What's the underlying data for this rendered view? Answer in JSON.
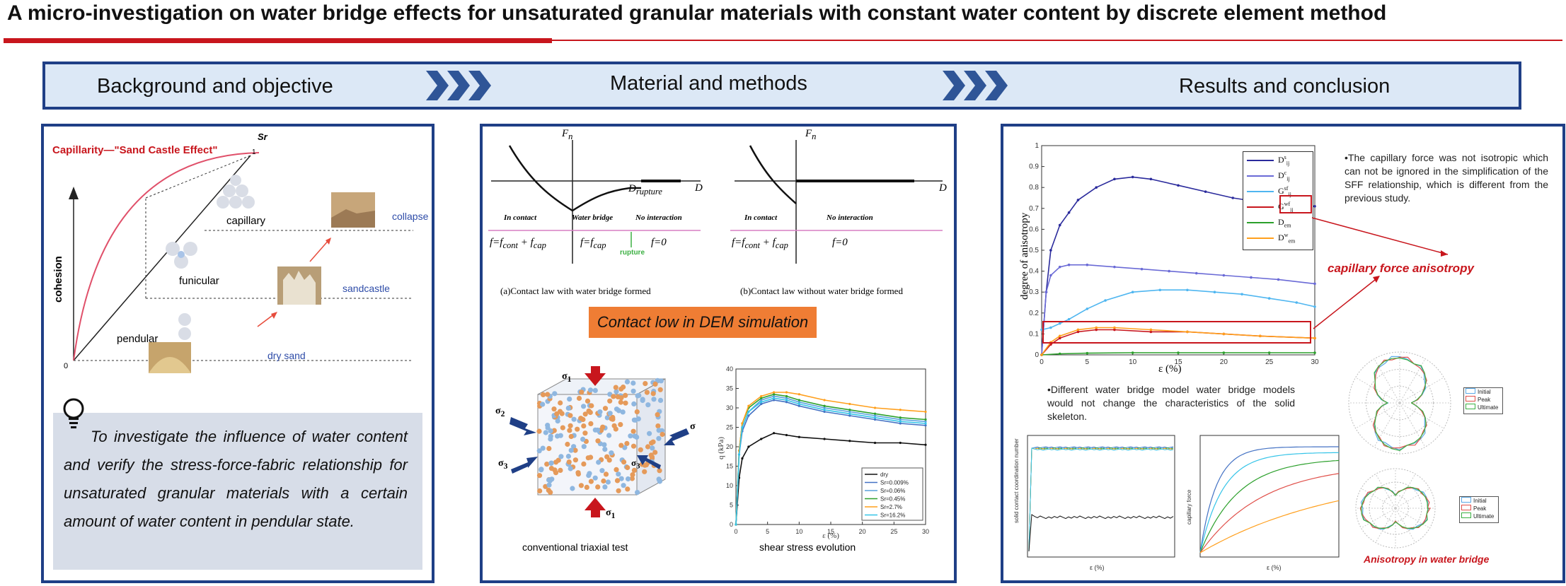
{
  "title": "A micro-investigation on water bridge effects for unsaturated granular materials with constant water content by discrete element method",
  "banner": {
    "background": "Background and objective",
    "methods": "Material and methods",
    "results": "Results and conclusion"
  },
  "colors": {
    "accent_red": "#c8161d",
    "frame_blue": "#1f3f86",
    "banner_fill": "#dce8f6",
    "orange": "#ef7d34"
  },
  "panel1": {
    "heading": "Capillarity—\"Sand Castle Effect\"",
    "axis_cohesion": "cohesion",
    "origin": "0",
    "sr_label": "Sr",
    "one_label": "1",
    "states": {
      "capillary": "capillary",
      "funicular": "funicular",
      "pendular": "pendular"
    },
    "photos": {
      "collapse": "collapse",
      "sandcastle": "sandcastle",
      "dry_sand": "dry sand"
    },
    "objective": "To investigate the  influence of water content and verify the stress-force-fabric relationship for unsaturated granular materials with a certain amount of water content  in pendular state."
  },
  "panel2": {
    "fn_label": "F",
    "fn_sub": "n",
    "d_label": "D",
    "d_rupture": "D",
    "d_rupture_sub": "rupture",
    "law_a": {
      "in_contact": "In contact",
      "water_bridge": "Water bridge",
      "no_interaction": "No interaction",
      "eq_contact": "f=f",
      "eq_contact_sub1": "cont",
      "eq_plus": " + f",
      "eq_contact_sub2": "cap",
      "eq_bridge": "f=f",
      "eq_bridge_sub": "cap",
      "eq_none": "f=0",
      "rupture": "rupture",
      "caption": "(a)Contact law with water bridge formed"
    },
    "law_b": {
      "in_contact": "In contact",
      "no_interaction": "No interaction",
      "eq_contact": "f=f",
      "eq_contact_sub1": "cont",
      "eq_plus": " + f",
      "eq_contact_sub2": "cap",
      "eq_none": "f=0",
      "caption": "(b)Contact law without water bridge formed"
    },
    "contact_banner": "Contact low in DEM simulation",
    "sigma": "σ",
    "sigma1_sub": "1",
    "sigma2_sub": "2",
    "sigma3_sub": "3",
    "triaxial_caption": "conventional triaxial test",
    "shear_caption": "shear stress evolution"
  },
  "panel3": {
    "anisotropy_ylabel": "degree of anisotropy",
    "anisotropy_xlabel": "ε (%)",
    "legend": [
      "D",
      "D",
      "G",
      "G",
      "D",
      "D"
    ],
    "note1": "•The capillary force was not isotropic which can not be ignored in the simplification of the SFF relationship, which is different from the previous study.",
    "capillary_label": "capillary force anisotropy",
    "note2": "•Different water bridge model water bridge models would not change the characteristics of the solid skeleton.",
    "bridge_label": "Anisotropy in water bridge",
    "polar_legend": [
      "Initial",
      "Peak",
      "Ultimate"
    ],
    "coord_ylabel": "solid contact coordination number",
    "coord_xlabel": "ε (%)",
    "cap_ylabel": "capillary force",
    "cap_xlabel": "ε (%)"
  },
  "chart_data": [
    {
      "type": "line",
      "ylabel": "q (kPa)",
      "xlabel": "ε (%)",
      "xlim": [
        0,
        30
      ],
      "ylim": [
        0,
        40
      ],
      "xticks": [
        0,
        5,
        10,
        15,
        20,
        25,
        30
      ],
      "yticks": [
        0,
        5,
        10,
        15,
        20,
        25,
        30,
        35,
        40
      ],
      "legend_position": "bottom-right",
      "series": [
        {
          "name": "dry",
          "color": "#111111",
          "x": [
            0,
            0.5,
            1,
            2,
            4,
            6,
            8,
            10,
            14,
            18,
            22,
            26,
            30
          ],
          "values": [
            0,
            12,
            17,
            20,
            22,
            23.5,
            23,
            22.5,
            22,
            21.5,
            21,
            21,
            20.5
          ]
        },
        {
          "name": "Sr=0.009%",
          "color": "#4472c4",
          "x": [
            0,
            0.5,
            1,
            2,
            4,
            6,
            8,
            10,
            14,
            18,
            22,
            26,
            30
          ],
          "values": [
            0,
            18,
            24,
            28,
            31,
            32,
            31.5,
            30.5,
            29,
            28,
            27,
            26,
            25.5
          ]
        },
        {
          "name": "Sr=0.06%",
          "color": "#5aa0dc",
          "x": [
            0,
            0.5,
            1,
            2,
            4,
            6,
            8,
            10,
            14,
            18,
            22,
            26,
            30
          ],
          "values": [
            0,
            18,
            25,
            29,
            32,
            33,
            32.5,
            31.5,
            30,
            29,
            28,
            27,
            26.5
          ]
        },
        {
          "name": "Sr=0.45%",
          "color": "#2ca02c",
          "x": [
            0,
            0.5,
            1,
            2,
            4,
            6,
            8,
            10,
            14,
            18,
            22,
            26,
            30
          ],
          "values": [
            0,
            19,
            26,
            30,
            32.5,
            33.5,
            33,
            32,
            30.5,
            29.5,
            28.5,
            27.5,
            27
          ]
        },
        {
          "name": "Sr=2.7%",
          "color": "#ff9f1c",
          "x": [
            0,
            0.5,
            1,
            2,
            4,
            6,
            8,
            10,
            14,
            18,
            22,
            26,
            30
          ],
          "values": [
            0,
            19,
            26,
            30.5,
            33,
            34,
            34,
            33.5,
            32,
            31,
            30,
            29.5,
            29
          ]
        },
        {
          "name": "Sr=16.2%",
          "color": "#35c4e8",
          "x": [
            0,
            0.5,
            1,
            2,
            4,
            6,
            8,
            10,
            14,
            18,
            22,
            26,
            30
          ],
          "values": [
            0,
            18,
            25,
            29,
            31.5,
            32.5,
            32,
            31,
            29.5,
            28.5,
            27.5,
            26.5,
            26
          ]
        }
      ]
    },
    {
      "type": "line",
      "ylabel": "degree of anisotropy",
      "xlabel": "ε (%)",
      "xlim": [
        0,
        30
      ],
      "ylim": [
        0,
        1
      ],
      "xticks": [
        0,
        5,
        10,
        15,
        20,
        25,
        30
      ],
      "yticks": [
        0,
        0.1,
        0.2,
        0.3,
        0.4,
        0.5,
        0.6,
        0.7,
        0.8,
        0.9,
        1
      ],
      "legend_position": "top-right",
      "series": [
        {
          "color": "#2a2a9c",
          "x": [
            0,
            0.5,
            1,
            2,
            3,
            4,
            6,
            8,
            10,
            12,
            15,
            18,
            21,
            24,
            27,
            30
          ],
          "values": [
            0,
            0.3,
            0.5,
            0.62,
            0.68,
            0.74,
            0.8,
            0.84,
            0.85,
            0.84,
            0.81,
            0.78,
            0.75,
            0.73,
            0.72,
            0.71
          ]
        },
        {
          "color": "#6a6ad6",
          "x": [
            0,
            0.5,
            1,
            2,
            3,
            5,
            8,
            11,
            14,
            17,
            20,
            23,
            26,
            30
          ],
          "values": [
            0,
            0.3,
            0.38,
            0.42,
            0.43,
            0.43,
            0.42,
            0.41,
            0.4,
            0.39,
            0.38,
            0.37,
            0.36,
            0.34
          ]
        },
        {
          "color": "#4fb6f0",
          "x": [
            0,
            1,
            2,
            3,
            5,
            7,
            10,
            13,
            16,
            19,
            22,
            25,
            28,
            30
          ],
          "values": [
            0.12,
            0.13,
            0.15,
            0.17,
            0.22,
            0.26,
            0.3,
            0.31,
            0.31,
            0.3,
            0.29,
            0.27,
            0.25,
            0.23
          ]
        },
        {
          "color": "#c8161d",
          "x": [
            0,
            1,
            2,
            4,
            6,
            8,
            12,
            16,
            20,
            24,
            30
          ],
          "values": [
            0,
            0.05,
            0.08,
            0.11,
            0.12,
            0.12,
            0.11,
            0.11,
            0.1,
            0.09,
            0.08
          ]
        },
        {
          "color": "#2ca02c",
          "x": [
            0,
            2,
            5,
            10,
            15,
            20,
            25,
            30
          ],
          "values": [
            0,
            0.005,
            0.008,
            0.01,
            0.01,
            0.01,
            0.01,
            0.01
          ]
        },
        {
          "color": "#ff9f1c",
          "x": [
            0,
            1,
            2,
            4,
            6,
            8,
            12,
            16,
            20,
            24,
            30
          ],
          "values": [
            0,
            0.06,
            0.09,
            0.12,
            0.13,
            0.13,
            0.12,
            0.11,
            0.1,
            0.09,
            0.08
          ]
        }
      ]
    }
  ]
}
